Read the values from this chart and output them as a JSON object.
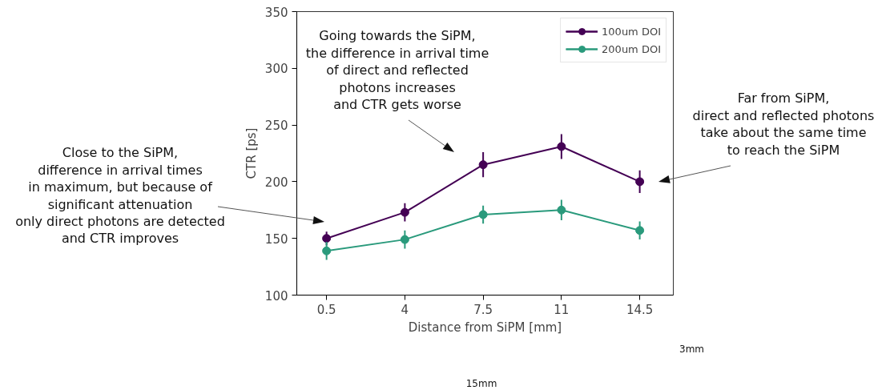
{
  "chart_data": {
    "type": "line",
    "xlabel": "Distance from SiPM [mm]",
    "ylabel": "CTR [ps]",
    "x": [
      0.5,
      4,
      7.5,
      11,
      14.5
    ],
    "series": [
      {
        "name": "100um DOI",
        "color": "#440154",
        "values": [
          150,
          173,
          215,
          231,
          200
        ],
        "errors": [
          6,
          8,
          11,
          11,
          10
        ]
      },
      {
        "name": "200um DOI",
        "color": "#2a9a7c",
        "values": [
          139,
          149,
          171,
          175,
          157
        ],
        "errors": [
          8,
          8,
          8,
          9,
          8
        ]
      }
    ],
    "xlim": [
      -0.83,
      16.0
    ],
    "ylim": [
      100,
      350
    ],
    "xticks": [
      0.5,
      4,
      7.5,
      11,
      14.5
    ],
    "yticks": [
      100,
      150,
      200,
      250,
      300,
      350
    ],
    "grid": false,
    "legend": "top right",
    "marker": "circle",
    "line_style": "solid",
    "annotations": [
      "Close to the SiPM,\ndifference in arrival times\nin maximum, but because of\nsignificant attenuation\nonly direct photons are detected\nand CTR improves",
      "Going towards the SiPM,\nthe difference in arrival time\nof direct and reflected\nphotons increases\nand CTR gets worse",
      "Far from SiPM,\ndirect and reflected photons\ntake about the same time\nto reach the SiPM",
      "3mm",
      "15mm"
    ]
  }
}
